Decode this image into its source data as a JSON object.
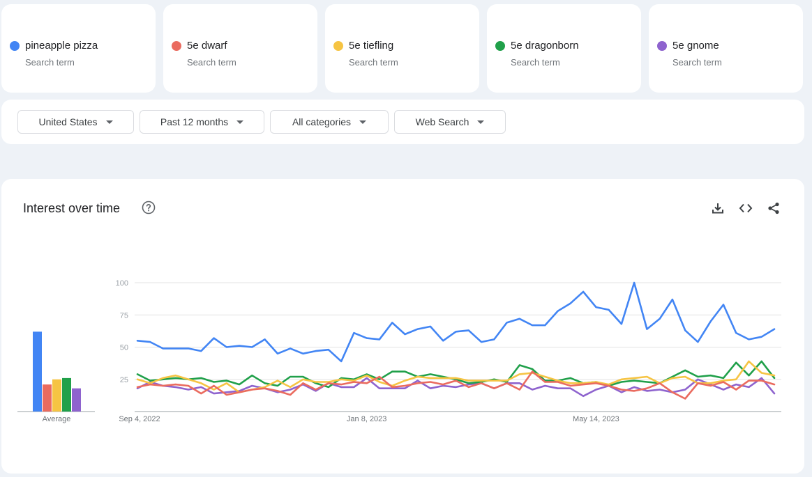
{
  "search_terms": [
    {
      "name": "pineapple pizza",
      "sub": "Search term",
      "color": "#4285f4"
    },
    {
      "name": "5e dwarf",
      "sub": "Search term",
      "color": "#ea6b5f"
    },
    {
      "name": "5e tiefling",
      "sub": "Search term",
      "color": "#f6c443"
    },
    {
      "name": "5e dragonborn",
      "sub": "Search term",
      "color": "#20a04a"
    },
    {
      "name": "5e gnome",
      "sub": "Search term",
      "color": "#8e63ce"
    }
  ],
  "filters": {
    "region": "United States",
    "time": "Past 12 months",
    "category": "All categories",
    "property": "Web Search"
  },
  "panel": {
    "title": "Interest over time",
    "icons": [
      "help-icon",
      "download-icon",
      "embed-icon",
      "share-icon"
    ]
  },
  "chart_data": {
    "type": "line",
    "title": "Interest over time",
    "ylim": [
      0,
      100
    ],
    "y_ticks": [
      25,
      50,
      75,
      100
    ],
    "x_tick_labels": [
      "Sep 4, 2022",
      "Jan 8, 2023",
      "May 14, 2023"
    ],
    "x_tick_indices": [
      0,
      18,
      36
    ],
    "x_start": "Sep 4, 2022",
    "x_interval": "1 week",
    "average_label": "Average",
    "average": [
      {
        "name": "pineapple pizza",
        "value": 62
      },
      {
        "name": "5e dwarf",
        "value": 21
      },
      {
        "name": "5e tiefling",
        "value": 25
      },
      {
        "name": "5e dragonborn",
        "value": 26
      },
      {
        "name": "5e gnome",
        "value": 18
      }
    ],
    "series": [
      {
        "name": "pineapple pizza",
        "color": "#4285f4",
        "values": [
          55,
          54,
          49,
          49,
          49,
          47,
          57,
          50,
          51,
          50,
          56,
          45,
          49,
          45,
          47,
          48,
          39,
          61,
          57,
          56,
          69,
          60,
          64,
          66,
          55,
          62,
          63,
          54,
          56,
          69,
          72,
          67,
          67,
          78,
          84,
          93,
          81,
          79,
          68,
          100,
          64,
          72,
          87,
          63,
          54,
          70,
          83,
          61,
          56,
          58,
          64
        ]
      },
      {
        "name": "5e dwarf",
        "color": "#ea6b5f",
        "values": [
          19,
          21,
          20,
          21,
          20,
          14,
          20,
          13,
          15,
          17,
          18,
          16,
          13,
          22,
          17,
          22,
          21,
          23,
          22,
          27,
          19,
          20,
          22,
          23,
          21,
          24,
          19,
          22,
          18,
          22,
          17,
          31,
          23,
          23,
          20,
          21,
          22,
          20,
          17,
          16,
          18,
          22,
          15,
          10,
          22,
          20,
          23,
          17,
          24,
          24,
          21
        ]
      },
      {
        "name": "5e tiefling",
        "color": "#f6c443",
        "values": [
          25,
          22,
          26,
          28,
          25,
          22,
          17,
          22,
          15,
          17,
          19,
          24,
          19,
          25,
          23,
          23,
          25,
          24,
          28,
          23,
          20,
          24,
          27,
          26,
          26,
          26,
          24,
          24,
          24,
          24,
          29,
          30,
          27,
          24,
          22,
          22,
          23,
          21,
          25,
          26,
          27,
          22,
          26,
          27,
          22,
          22,
          24,
          25,
          39,
          30,
          28
        ]
      },
      {
        "name": "5e dragonborn",
        "color": "#20a04a",
        "values": [
          29,
          24,
          25,
          26,
          25,
          26,
          23,
          24,
          21,
          28,
          22,
          20,
          27,
          27,
          22,
          19,
          26,
          25,
          29,
          25,
          31,
          31,
          27,
          29,
          27,
          25,
          22,
          23,
          25,
          23,
          36,
          33,
          24,
          24,
          26,
          22,
          23,
          20,
          23,
          24,
          23,
          22,
          27,
          32,
          27,
          28,
          26,
          38,
          28,
          39,
          26
        ]
      },
      {
        "name": "5e gnome",
        "color": "#8e63ce",
        "values": [
          18,
          23,
          20,
          19,
          17,
          19,
          14,
          15,
          16,
          20,
          18,
          15,
          17,
          21,
          16,
          22,
          19,
          19,
          26,
          18,
          18,
          18,
          24,
          18,
          20,
          19,
          21,
          22,
          18,
          22,
          22,
          17,
          20,
          18,
          18,
          12,
          17,
          20,
          15,
          19,
          16,
          17,
          15,
          17,
          25,
          21,
          17,
          21,
          19,
          26,
          14
        ]
      }
    ]
  }
}
